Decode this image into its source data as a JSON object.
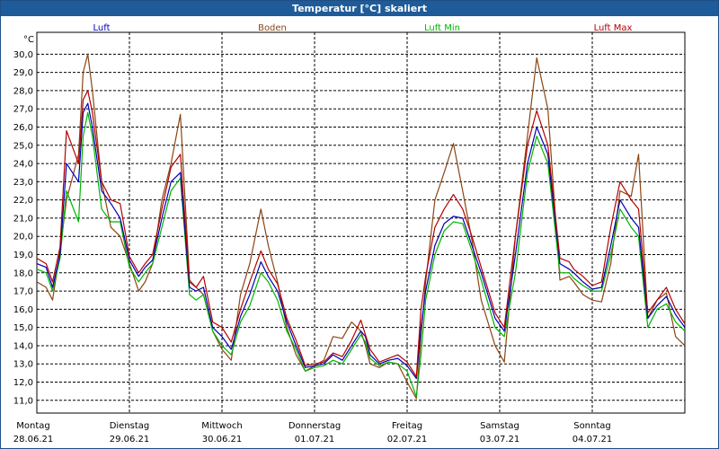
{
  "window": {
    "title": "Temperatur [°C] skaliert"
  },
  "colors": {
    "Luft": "#0000b4",
    "Boden": "#8b4513",
    "Luft Min": "#00b400",
    "Luft Max": "#b40000",
    "grid": "#000000",
    "title_bg": "#1f5b98"
  },
  "chart_data": {
    "type": "line",
    "title": "Temperatur [°C] skaliert",
    "ylabel": "°C",
    "xlabel": "",
    "ylim": [
      10.3,
      31.2
    ],
    "xlim": [
      0,
      7
    ],
    "grid": true,
    "y_ticks": [
      "11,0",
      "12,0",
      "13,0",
      "14,0",
      "15,0",
      "16,0",
      "17,0",
      "18,0",
      "19,0",
      "20,0",
      "21,0",
      "22,0",
      "23,0",
      "24,0",
      "25,0",
      "26,0",
      "27,0",
      "28,0",
      "29,0",
      "30,0"
    ],
    "day_labels": [
      {
        "day": "Montag",
        "date": "28.06.21"
      },
      {
        "day": "Dienstag",
        "date": "29.06.21"
      },
      {
        "day": "Mittwoch",
        "date": "30.06.21"
      },
      {
        "day": "Donnerstag",
        "date": "01.07.21"
      },
      {
        "day": "Freitag",
        "date": "02.07.21"
      },
      {
        "day": "Samstag",
        "date": "03.07.21"
      },
      {
        "day": "Sonntag",
        "date": "04.07.21"
      }
    ],
    "series": [
      {
        "name": "Luft",
        "x": [
          0,
          0.1,
          0.17,
          0.25,
          0.32,
          0.45,
          0.5,
          0.55,
          0.6,
          0.7,
          0.8,
          0.9,
          1,
          1.1,
          1.17,
          1.25,
          1.35,
          1.45,
          1.55,
          1.65,
          1.72,
          1.8,
          1.9,
          2,
          2.1,
          2.2,
          2.3,
          2.42,
          2.5,
          2.6,
          2.7,
          2.8,
          2.9,
          3,
          3.1,
          3.2,
          3.3,
          3.4,
          3.5,
          3.55,
          3.6,
          3.7,
          3.8,
          3.9,
          4,
          4.1,
          4.15,
          4.2,
          4.3,
          4.4,
          4.5,
          4.6,
          4.7,
          4.8,
          4.95,
          5.05,
          5.17,
          5.3,
          5.4,
          5.52,
          5.65,
          5.75,
          5.8,
          5.9,
          6,
          6.1,
          6.2,
          6.3,
          6.42,
          6.5,
          6.6,
          6.7,
          6.8,
          6.9,
          7
        ],
        "values": [
          18.5,
          18.3,
          17.2,
          19.0,
          24.0,
          23.0,
          26.8,
          27.3,
          26.0,
          22.5,
          21.8,
          21.0,
          18.7,
          17.8,
          18.3,
          18.7,
          21.0,
          23.0,
          23.5,
          17.2,
          17.0,
          17.2,
          15.0,
          14.5,
          13.8,
          15.6,
          16.8,
          18.6,
          17.8,
          17.0,
          15.3,
          14.0,
          12.8,
          12.9,
          13.0,
          13.5,
          13.2,
          14.0,
          14.8,
          14.5,
          13.5,
          13.0,
          13.2,
          13.3,
          12.9,
          12.2,
          15.0,
          17.0,
          19.5,
          20.7,
          21.1,
          21.0,
          19.5,
          18.0,
          15.5,
          14.8,
          19.0,
          24.0,
          26.0,
          24.5,
          18.5,
          18.2,
          18.0,
          17.5,
          17.1,
          17.2,
          19.5,
          22.0,
          21.0,
          20.5,
          15.5,
          16.2,
          16.7,
          15.7,
          15.0
        ]
      },
      {
        "name": "Boden",
        "x": [
          0,
          0.1,
          0.17,
          0.25,
          0.32,
          0.45,
          0.5,
          0.55,
          0.6,
          0.7,
          0.8,
          0.9,
          1,
          1.1,
          1.17,
          1.25,
          1.35,
          1.45,
          1.55,
          1.65,
          1.72,
          1.8,
          1.9,
          2,
          2.1,
          2.2,
          2.3,
          2.42,
          2.5,
          2.6,
          2.7,
          2.8,
          2.9,
          3,
          3.1,
          3.2,
          3.3,
          3.4,
          3.5,
          3.55,
          3.6,
          3.7,
          3.8,
          3.9,
          4,
          4.1,
          4.15,
          4.2,
          4.3,
          4.4,
          4.5,
          4.6,
          4.7,
          4.8,
          4.95,
          5.05,
          5.17,
          5.3,
          5.4,
          5.52,
          5.65,
          5.75,
          5.8,
          5.9,
          6,
          6.1,
          6.2,
          6.3,
          6.42,
          6.5,
          6.6,
          6.7,
          6.8,
          6.9,
          7
        ],
        "values": [
          17.5,
          17.2,
          16.5,
          19.2,
          22.0,
          24.5,
          29.0,
          30.0,
          28.0,
          23.0,
          20.5,
          20.0,
          18.5,
          17.0,
          17.5,
          18.5,
          22.0,
          24.0,
          26.7,
          17.6,
          17.2,
          16.8,
          14.8,
          13.8,
          13.2,
          16.8,
          18.5,
          21.5,
          19.5,
          17.5,
          15.0,
          13.5,
          12.6,
          12.9,
          13.2,
          14.5,
          14.4,
          15.3,
          14.8,
          14.0,
          13.0,
          12.8,
          13.1,
          13.0,
          12.0,
          11.1,
          14.5,
          17.5,
          22.0,
          23.5,
          25.1,
          22.5,
          19.8,
          16.5,
          14.0,
          13.1,
          20.0,
          25.5,
          29.8,
          27.0,
          17.6,
          17.8,
          17.5,
          16.8,
          16.5,
          16.4,
          18.5,
          22.5,
          22.2,
          24.5,
          15.5,
          16.5,
          16.9,
          14.5,
          14.0
        ]
      },
      {
        "name": "Luft Min",
        "x": [
          0,
          0.1,
          0.17,
          0.25,
          0.32,
          0.45,
          0.5,
          0.55,
          0.6,
          0.7,
          0.8,
          0.9,
          1,
          1.1,
          1.17,
          1.25,
          1.35,
          1.45,
          1.55,
          1.65,
          1.72,
          1.8,
          1.9,
          2,
          2.1,
          2.2,
          2.3,
          2.42,
          2.5,
          2.6,
          2.7,
          2.8,
          2.9,
          3,
          3.1,
          3.2,
          3.3,
          3.4,
          3.5,
          3.55,
          3.6,
          3.7,
          3.8,
          3.9,
          4,
          4.1,
          4.15,
          4.2,
          4.3,
          4.4,
          4.5,
          4.6,
          4.7,
          4.8,
          4.95,
          5.05,
          5.17,
          5.3,
          5.4,
          5.52,
          5.65,
          5.75,
          5.8,
          5.9,
          6,
          6.1,
          6.2,
          6.3,
          6.42,
          6.5,
          6.6,
          6.7,
          6.8,
          6.9,
          7
        ],
        "values": [
          18.2,
          18.0,
          17.0,
          18.8,
          22.5,
          20.8,
          25.5,
          26.8,
          25.5,
          21.5,
          20.8,
          20.8,
          18.3,
          17.5,
          18.0,
          18.5,
          20.5,
          22.5,
          23.2,
          16.8,
          16.5,
          16.8,
          14.8,
          14.0,
          13.5,
          15.3,
          16.2,
          18.0,
          17.5,
          16.5,
          14.8,
          13.8,
          12.6,
          12.8,
          12.9,
          13.2,
          13.0,
          13.8,
          14.6,
          14.2,
          13.3,
          12.9,
          13.1,
          13.0,
          12.6,
          11.2,
          13.5,
          16.5,
          19.0,
          20.3,
          20.8,
          20.7,
          19.2,
          17.6,
          15.0,
          14.5,
          18.0,
          23.5,
          25.5,
          24.0,
          18.0,
          18.0,
          17.7,
          17.3,
          17.0,
          17.0,
          19.0,
          21.5,
          20.5,
          20.0,
          15.0,
          16.0,
          16.3,
          15.3,
          14.8
        ]
      },
      {
        "name": "Luft Max",
        "x": [
          0,
          0.1,
          0.17,
          0.25,
          0.32,
          0.45,
          0.5,
          0.55,
          0.6,
          0.7,
          0.8,
          0.9,
          1,
          1.1,
          1.17,
          1.25,
          1.35,
          1.45,
          1.55,
          1.65,
          1.72,
          1.8,
          1.9,
          2,
          2.1,
          2.2,
          2.3,
          2.42,
          2.5,
          2.6,
          2.7,
          2.8,
          2.9,
          3,
          3.1,
          3.2,
          3.3,
          3.4,
          3.5,
          3.55,
          3.6,
          3.7,
          3.8,
          3.9,
          4,
          4.1,
          4.15,
          4.2,
          4.3,
          4.4,
          4.5,
          4.6,
          4.7,
          4.8,
          4.95,
          5.05,
          5.17,
          5.3,
          5.4,
          5.52,
          5.65,
          5.75,
          5.8,
          5.9,
          6,
          6.1,
          6.2,
          6.3,
          6.42,
          6.5,
          6.6,
          6.7,
          6.8,
          6.9,
          7
        ],
        "values": [
          18.8,
          18.5,
          17.5,
          19.4,
          25.8,
          24.0,
          27.5,
          28.0,
          26.8,
          23.0,
          22.0,
          21.8,
          18.9,
          18.0,
          18.5,
          19.0,
          21.5,
          23.8,
          24.5,
          17.5,
          17.2,
          17.8,
          15.3,
          15.0,
          14.2,
          16.0,
          17.5,
          19.2,
          18.2,
          17.4,
          15.5,
          14.3,
          12.9,
          13.0,
          13.1,
          13.6,
          13.4,
          14.3,
          15.4,
          14.6,
          13.8,
          13.1,
          13.3,
          13.5,
          13.1,
          12.3,
          16.0,
          17.8,
          20.5,
          21.5,
          22.3,
          21.5,
          20.0,
          18.3,
          15.8,
          15.0,
          20.0,
          25.0,
          26.9,
          25.0,
          18.8,
          18.6,
          18.2,
          17.8,
          17.3,
          17.5,
          20.5,
          23.0,
          22.0,
          21.5,
          15.8,
          16.5,
          17.2,
          16.0,
          15.2
        ]
      }
    ]
  }
}
